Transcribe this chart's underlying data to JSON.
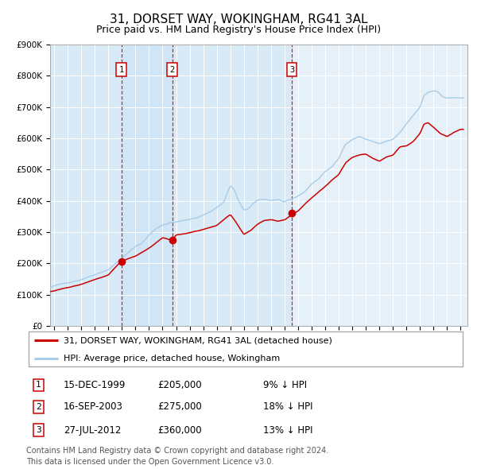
{
  "title": "31, DORSET WAY, WOKINGHAM, RG41 3AL",
  "subtitle": "Price paid vs. HM Land Registry's House Price Index (HPI)",
  "ylim": [
    0,
    900000
  ],
  "yticks": [
    0,
    100000,
    200000,
    300000,
    400000,
    500000,
    600000,
    700000,
    800000,
    900000
  ],
  "ytick_labels": [
    "£0",
    "£100K",
    "£200K",
    "£300K",
    "£400K",
    "£500K",
    "£600K",
    "£700K",
    "£800K",
    "£900K"
  ],
  "xlim_start": 1994.7,
  "xlim_end": 2025.5,
  "hpi_color": "#a8cce8",
  "price_color": "#cc0000",
  "bg_color": "#ddeeff",
  "shade_color": "#c8dff0",
  "legend_price_label": "31, DORSET WAY, WOKINGHAM, RG41 3AL (detached house)",
  "legend_hpi_label": "HPI: Average price, detached house, Wokingham",
  "table_rows": [
    [
      "1",
      "15-DEC-1999",
      "£205,000",
      "9% ↓ HPI"
    ],
    [
      "2",
      "16-SEP-2003",
      "£275,000",
      "18% ↓ HPI"
    ],
    [
      "3",
      "27-JUL-2012",
      "£360,000",
      "13% ↓ HPI"
    ]
  ],
  "footer": "Contains HM Land Registry data © Crown copyright and database right 2024.\nThis data is licensed under the Open Government Licence v3.0.",
  "title_fontsize": 11,
  "subtitle_fontsize": 9,
  "tick_fontsize": 7.5,
  "legend_fontsize": 8,
  "table_fontsize": 8.5,
  "footer_fontsize": 7
}
